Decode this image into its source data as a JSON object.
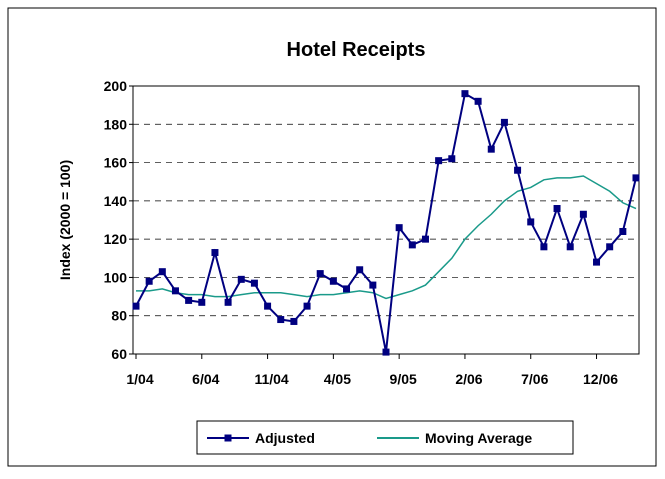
{
  "chart_data": {
    "type": "line",
    "title": "Hotel Receipts",
    "y_label": "Index (2000 = 100)",
    "categories": [
      "1/04",
      null,
      null,
      null,
      null,
      "6/04",
      null,
      null,
      null,
      null,
      "11/04",
      null,
      null,
      null,
      null,
      "4/05",
      null,
      null,
      null,
      null,
      "9/05",
      null,
      null,
      null,
      null,
      "2/06",
      null,
      null,
      null,
      null,
      "7/06",
      null,
      null,
      null,
      null,
      "12/06",
      null,
      null,
      null
    ],
    "series": [
      {
        "name": "Adjusted",
        "color": "#000080",
        "marker": "square",
        "values": [
          85,
          98,
          103,
          93,
          88,
          87,
          113,
          87,
          99,
          97,
          85,
          78,
          77,
          85,
          102,
          98,
          94,
          104,
          96,
          61,
          126,
          117,
          120,
          161,
          162,
          196,
          192,
          167,
          181,
          156,
          129,
          116,
          136,
          116,
          133,
          108,
          116,
          124,
          152
        ]
      },
      {
        "name": "Moving Average",
        "color": "#1a9a8a",
        "values": [
          93,
          93,
          94,
          92,
          91,
          91,
          90,
          90,
          91,
          92,
          92,
          92,
          91,
          90,
          91,
          91,
          92,
          93,
          92,
          89,
          91,
          93,
          96,
          103,
          110,
          120,
          127,
          133,
          140,
          145,
          147,
          151,
          152,
          152,
          153,
          149,
          145,
          139,
          136
        ]
      }
    ],
    "ylim": [
      60,
      200
    ],
    "yticks": [
      60,
      80,
      100,
      120,
      140,
      160,
      180,
      200
    ],
    "grid": true,
    "legend": "bottom"
  }
}
